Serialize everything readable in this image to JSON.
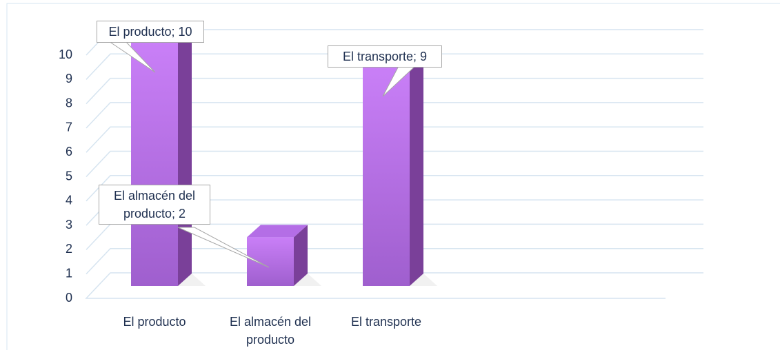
{
  "chart_data": {
    "type": "bar3d",
    "categories": [
      "El producto",
      "El almacén del producto",
      "El transporte"
    ],
    "values": [
      10,
      2,
      9
    ],
    "value_labels": [
      "El producto; 10",
      "El almacén del producto; 2",
      "El transporte; 9"
    ],
    "color": "#c77df5",
    "ylim": [
      0,
      10
    ],
    "yticks": [
      0,
      1,
      2,
      3,
      4,
      5,
      6,
      7,
      8,
      9,
      10
    ],
    "grid": true
  }
}
